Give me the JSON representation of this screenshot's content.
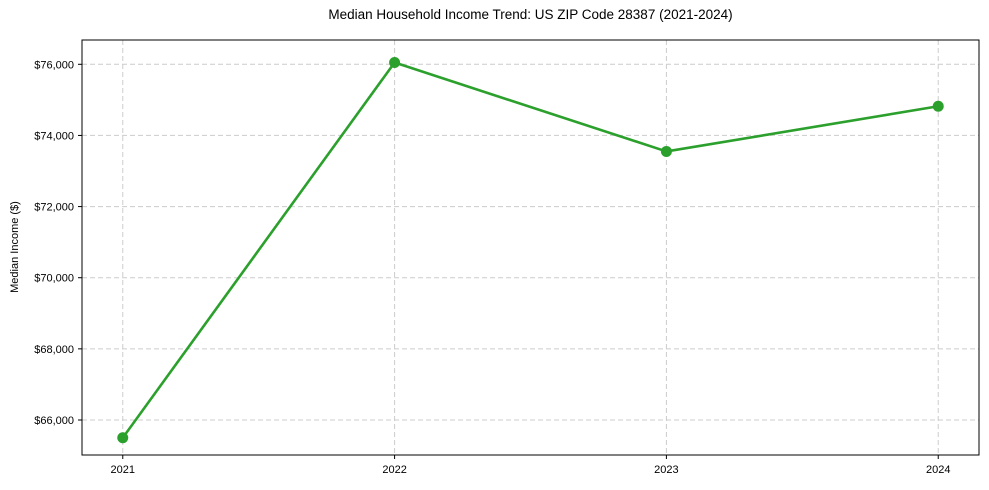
{
  "chart_data": {
    "type": "line",
    "title": "Median Household Income Trend: US ZIP Code 28387 (2021-2024)",
    "xlabel": "",
    "ylabel": "Median Income ($)",
    "x": [
      2021,
      2022,
      2023,
      2024
    ],
    "x_tick_labels": [
      "2021",
      "2022",
      "2023",
      "2024"
    ],
    "values": [
      65500,
      76050,
      73550,
      74820
    ],
    "y_ticks": [
      66000,
      68000,
      70000,
      72000,
      74000,
      76000
    ],
    "y_tick_labels": [
      "$66,000",
      "$68,000",
      "$70,000",
      "$72,000",
      "$74,000",
      "$76,000"
    ],
    "xlim": [
      2020.85,
      2024.15
    ],
    "ylim": [
      65016,
      76683
    ],
    "grid": "dashed on both axes",
    "legend": "none",
    "colors": {
      "line": "#2ca02c",
      "marker": "#2ca02c",
      "grid": "#cccccc",
      "spine": "#000000",
      "text": "#000000",
      "background": "#ffffff"
    }
  }
}
